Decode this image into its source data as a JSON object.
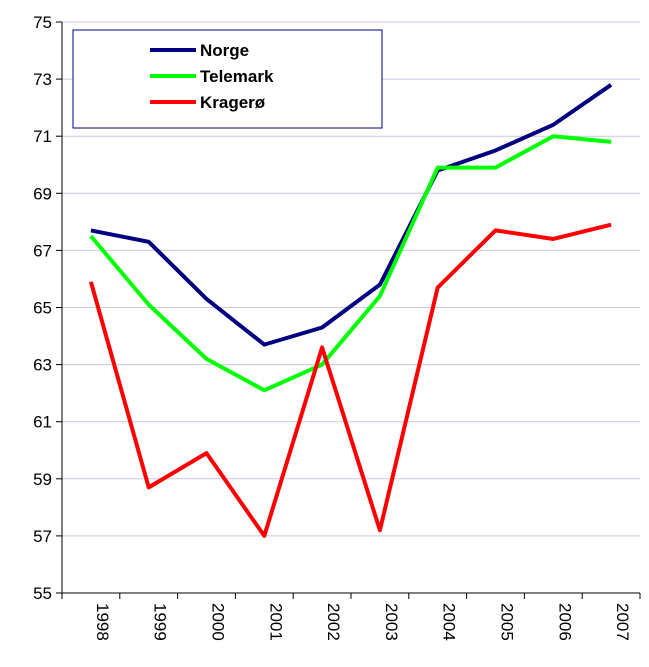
{
  "chart_data": {
    "type": "line",
    "categories": [
      "1998",
      "1999",
      "2000",
      "2001",
      "2002",
      "2003",
      "2004",
      "2005",
      "2006",
      "2007"
    ],
    "series": [
      {
        "name": "Norge",
        "color": "#000080",
        "values": [
          67.7,
          67.3,
          65.3,
          63.7,
          64.3,
          65.8,
          69.8,
          70.5,
          71.4,
          72.8
        ]
      },
      {
        "name": "Telemark",
        "color": "#00ff00",
        "values": [
          67.5,
          65.1,
          63.2,
          62.1,
          63.0,
          65.4,
          69.9,
          69.9,
          71.0,
          70.8
        ]
      },
      {
        "name": "Kragerø",
        "color": "#ff0000",
        "values": [
          65.9,
          58.7,
          59.9,
          57.0,
          63.6,
          57.2,
          65.7,
          67.7,
          67.4,
          67.9
        ]
      }
    ],
    "ylim": [
      55,
      75
    ],
    "yticks": [
      55,
      57,
      59,
      61,
      63,
      65,
      67,
      69,
      71,
      73,
      75
    ],
    "grid": true,
    "legend": "upper left"
  }
}
